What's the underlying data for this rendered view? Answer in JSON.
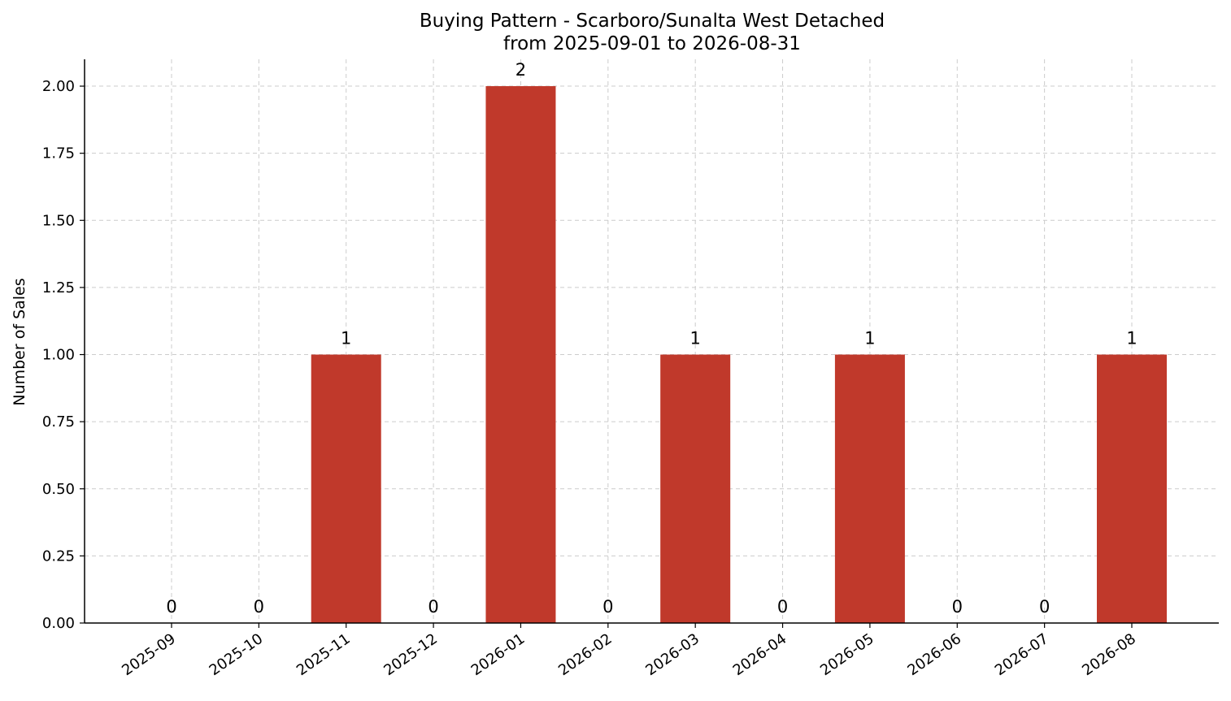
{
  "chart_data": {
    "type": "bar",
    "title": "Buying Pattern - Scarboro/Sunalta West Detached",
    "subtitle": "from 2025-09-01 to 2026-08-31",
    "xlabel": "",
    "ylabel": "Number of Sales",
    "categories": [
      "2025-09",
      "2025-10",
      "2025-11",
      "2025-12",
      "2026-01",
      "2026-02",
      "2026-03",
      "2026-04",
      "2026-05",
      "2026-06",
      "2026-07",
      "2026-08"
    ],
    "values": [
      0,
      0,
      1,
      0,
      2,
      0,
      1,
      0,
      1,
      0,
      0,
      1
    ],
    "data_labels": [
      "0",
      "0",
      "1",
      "0",
      "2",
      "0",
      "1",
      "0",
      "1",
      "0",
      "0",
      "1"
    ],
    "ylim": [
      0,
      2.1
    ],
    "yticks": [
      0,
      0.25,
      0.5,
      0.75,
      1.0,
      1.25,
      1.5,
      1.75,
      2.0
    ],
    "ytick_labels": [
      "0.00",
      "0.25",
      "0.50",
      "0.75",
      "1.00",
      "1.25",
      "1.50",
      "1.75",
      "2.00"
    ],
    "grid": true,
    "bar_color": "#c0392b"
  }
}
